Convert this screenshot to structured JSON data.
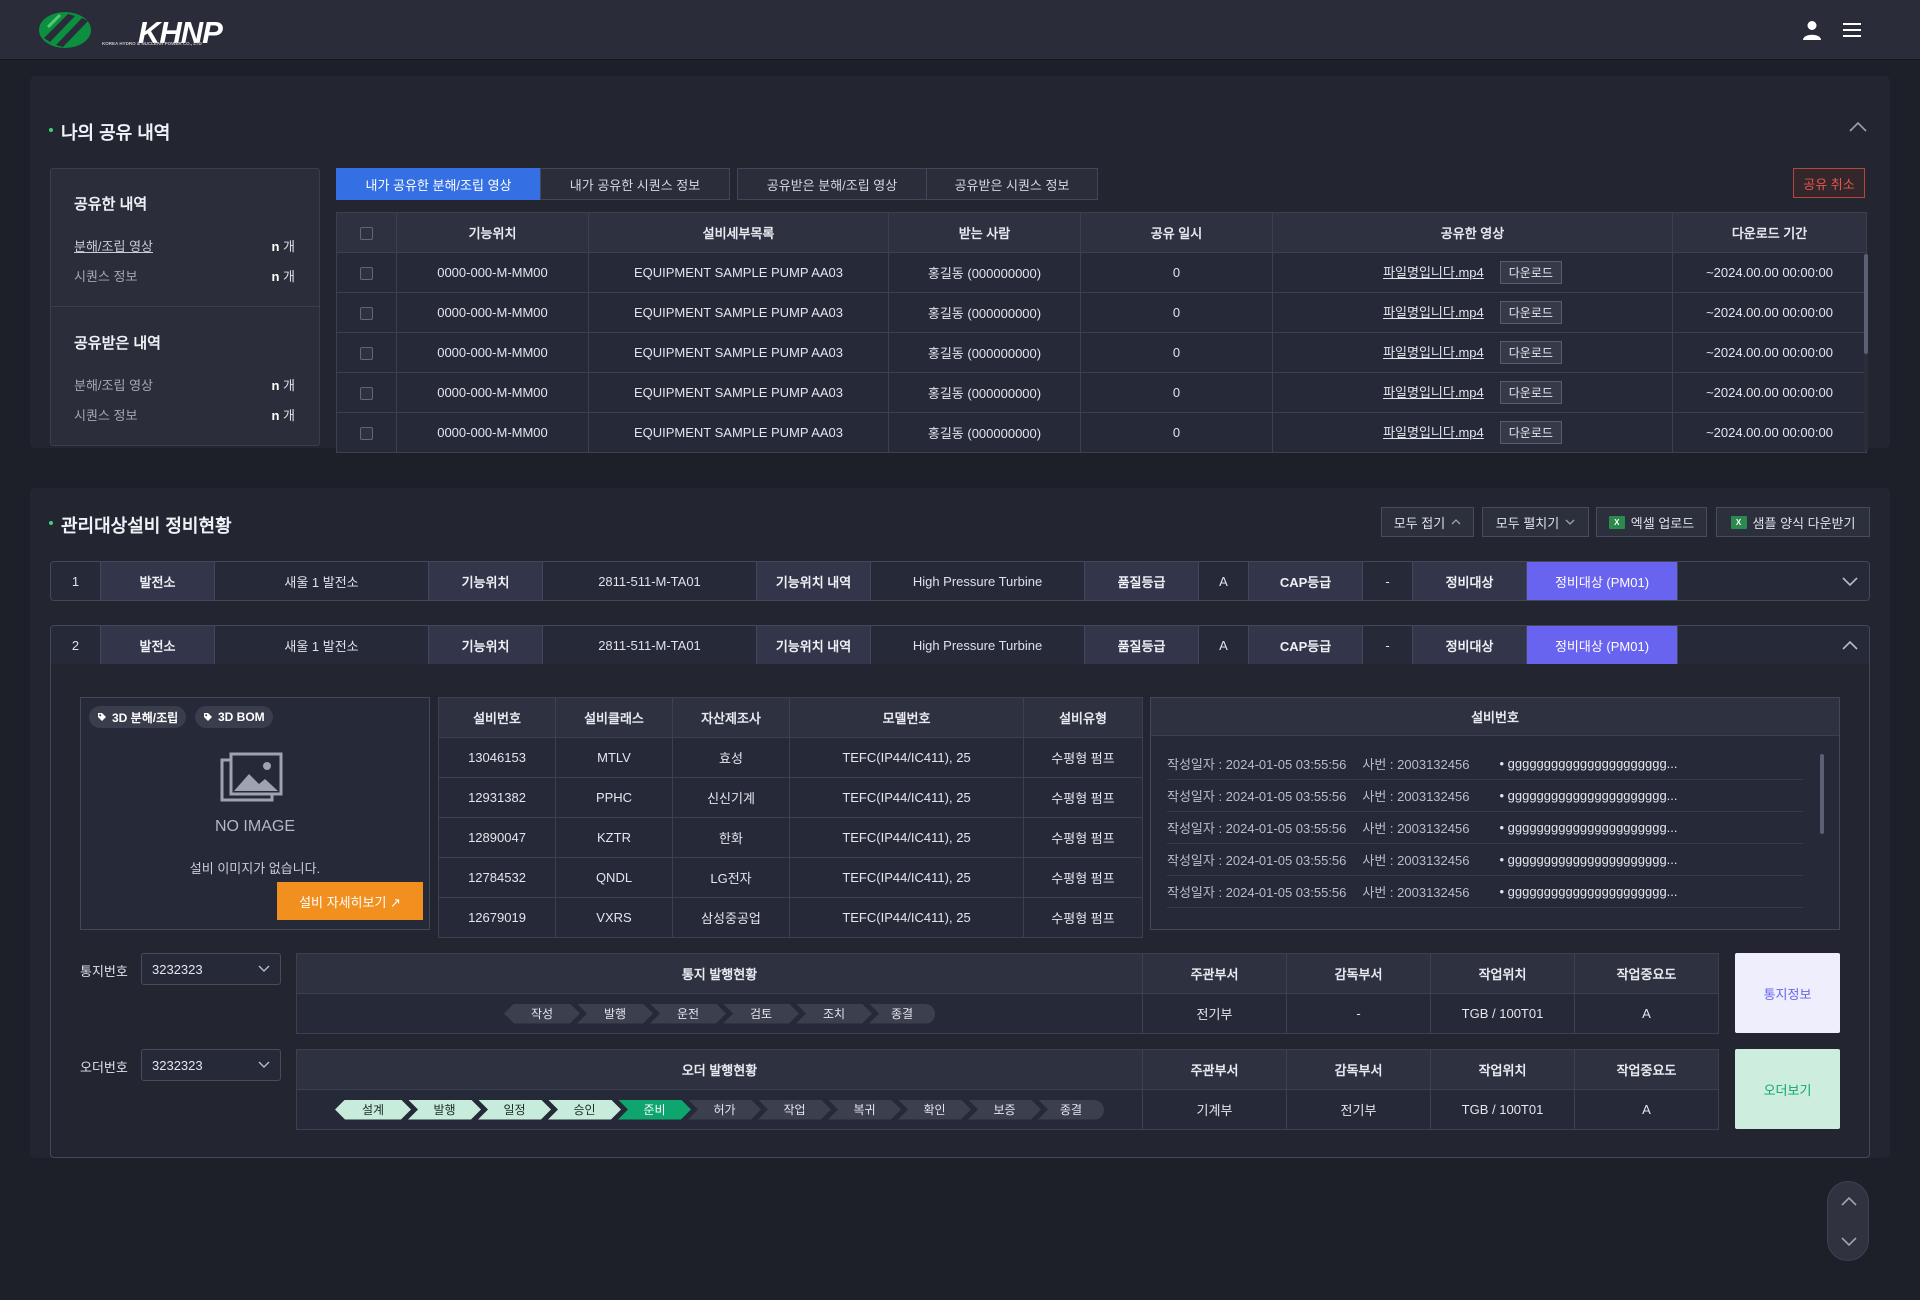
{
  "header": {
    "logo_text": "KHNP",
    "logo_sub": "KOREA HYDRO & NUCLEAR POWER CO., LTD"
  },
  "share": {
    "title": "나의 공유 내역",
    "summary": {
      "shared_title": "공유한 내역",
      "shared_items": [
        {
          "label": "분해/조립 영상",
          "count": "n",
          "unit": "개"
        },
        {
          "label": "시퀀스 정보",
          "count": "n",
          "unit": "개"
        }
      ],
      "received_title": "공유받은 내역",
      "received_items": [
        {
          "label": "분해/조립 영상",
          "count": "n",
          "unit": "개"
        },
        {
          "label": "시퀀스 정보",
          "count": "n",
          "unit": "개"
        }
      ]
    },
    "tabs": [
      "내가 공유한 분해/조립 영상",
      "내가 공유한 시퀀스 정보",
      "공유받은 분해/조립 영상",
      "공유받은 시퀀스 정보"
    ],
    "cancel_label": "공유 취소",
    "columns": [
      "기능위치",
      "설비세부목록",
      "받는 사람",
      "공유 일시",
      "공유한 영상",
      "다운로드 기간"
    ],
    "download_label": "다운로드",
    "rows": [
      {
        "loc": "0000-000-M-MM00",
        "equip": "EQUIPMENT SAMPLE PUMP AA03",
        "to": "홍길동 (000000000)",
        "date": "0",
        "file": "파일명입니다.mp4",
        "period": "~2024.00.00 00:00:00"
      },
      {
        "loc": "0000-000-M-MM00",
        "equip": "EQUIPMENT SAMPLE PUMP AA03",
        "to": "홍길동 (000000000)",
        "date": "0",
        "file": "파일명입니다.mp4",
        "period": "~2024.00.00 00:00:00"
      },
      {
        "loc": "0000-000-M-MM00",
        "equip": "EQUIPMENT SAMPLE PUMP AA03",
        "to": "홍길동 (000000000)",
        "date": "0",
        "file": "파일명입니다.mp4",
        "period": "~2024.00.00 00:00:00"
      },
      {
        "loc": "0000-000-M-MM00",
        "equip": "EQUIPMENT SAMPLE PUMP AA03",
        "to": "홍길동 (000000000)",
        "date": "0",
        "file": "파일명입니다.mp4",
        "period": "~2024.00.00 00:00:00"
      },
      {
        "loc": "0000-000-M-MM00",
        "equip": "EQUIPMENT SAMPLE PUMP AA03",
        "to": "홍길동 (000000000)",
        "date": "0",
        "file": "파일명입니다.mp4",
        "period": "~2024.00.00 00:00:00"
      }
    ]
  },
  "maint": {
    "title": "관리대상설비 정비현황",
    "collapse_all": "모두 접기",
    "expand_all": "모두 펼치기",
    "excel_upload": "엑셀 업로드",
    "sample_download": "샘플 양식 다운받기",
    "rows": [
      {
        "no": "1",
        "plant_l": "발전소",
        "plant": "새울 1 발전소",
        "loc_l": "기능위치",
        "loc": "2811-511-M-TA01",
        "desc_l": "기능위치 내역",
        "desc": "High Pressure Turbine",
        "grade_l": "품질등급",
        "grade": "A",
        "cap_l": "CAP등급",
        "cap": "-",
        "target_l": "정비대상",
        "target": "정비대상 (PM01)"
      },
      {
        "no": "2",
        "plant_l": "발전소",
        "plant": "새울 1 발전소",
        "loc_l": "기능위치",
        "loc": "2811-511-M-TA01",
        "desc_l": "기능위치 내역",
        "desc": "High Pressure Turbine",
        "grade_l": "품질등급",
        "grade": "A",
        "cap_l": "CAP등급",
        "cap": "-",
        "target_l": "정비대상",
        "target": "정비대상 (PM01)"
      }
    ],
    "detail": {
      "chip1": "3D 분해/조립",
      "chip2": "3D BOM",
      "no_image": "NO IMAGE",
      "no_image_msg": "설비 이미지가 없습니다.",
      "detail_btn": "설비 자세히보기 ↗",
      "eq_columns": [
        "설비번호",
        "설비클래스",
        "자산제조사",
        "모델번호",
        "설비유형"
      ],
      "eq_rows": [
        [
          "13046153",
          "MTLV",
          "효성",
          "TEFC(IP44/IC411), 25",
          "수평형 펌프"
        ],
        [
          "12931382",
          "PPHC",
          "신신기계",
          "TEFC(IP44/IC411), 25",
          "수평형 펌프"
        ],
        [
          "12890047",
          "KZTR",
          "한화",
          "TEFC(IP44/IC411), 25",
          "수평형 펌프"
        ],
        [
          "12784532",
          "QNDL",
          "LG전자",
          "TEFC(IP44/IC411), 25",
          "수평형 펌프"
        ],
        [
          "12679019",
          "VXRS",
          "삼성중공업",
          "TEFC(IP44/IC411), 25",
          "수평형 펌프"
        ]
      ],
      "log_title": "설비번호",
      "log_rows": [
        {
          "date": "작성일자 : 2024-01-05 03:55:56",
          "emp": "사번 : 2003132456",
          "text": "gggggggggggggggggggggg..."
        },
        {
          "date": "작성일자 : 2024-01-05 03:55:56",
          "emp": "사번 : 2003132456",
          "text": "gggggggggggggggggggggg..."
        },
        {
          "date": "작성일자 : 2024-01-05 03:55:56",
          "emp": "사번 : 2003132456",
          "text": "gggggggggggggggggggggg..."
        },
        {
          "date": "작성일자 : 2024-01-05 03:55:56",
          "emp": "사번 : 2003132456",
          "text": "gggggggggggggggggggggg..."
        },
        {
          "date": "작성일자 : 2024-01-05 03:55:56",
          "emp": "사번 : 2003132456",
          "text": "gggggggggggggggggggggg..."
        }
      ],
      "notice": {
        "label": "통지번호",
        "value": "3232323",
        "status_title": "통지 발행현황",
        "steps": [
          "작성",
          "발행",
          "운전",
          "검토",
          "조치",
          "종결"
        ],
        "cols": [
          "주관부서",
          "감독부서",
          "작업위치",
          "작업중요도"
        ],
        "vals": [
          "전기부",
          "-",
          "TGB / 100T01",
          "A"
        ],
        "btn": "통지정보"
      },
      "order": {
        "label": "오더번호",
        "value": "3232323",
        "status_title": "오더 발행현황",
        "steps": [
          "설계",
          "발행",
          "일정",
          "승인",
          "준비",
          "허가",
          "작업",
          "복귀",
          "확인",
          "보증",
          "종결"
        ],
        "done_count": 4,
        "current_index": 4,
        "cols": [
          "주관부서",
          "감독부서",
          "작업위치",
          "작업중요도"
        ],
        "vals": [
          "기계부",
          "전기부",
          "TGB / 100T01",
          "A"
        ],
        "btn": "오더보기"
      }
    }
  },
  "colors": {
    "accent": "#3470e4",
    "pm": "#6964ef",
    "success": "#0ea66e",
    "warning": "#f2901f",
    "danger": "#e3564d"
  }
}
